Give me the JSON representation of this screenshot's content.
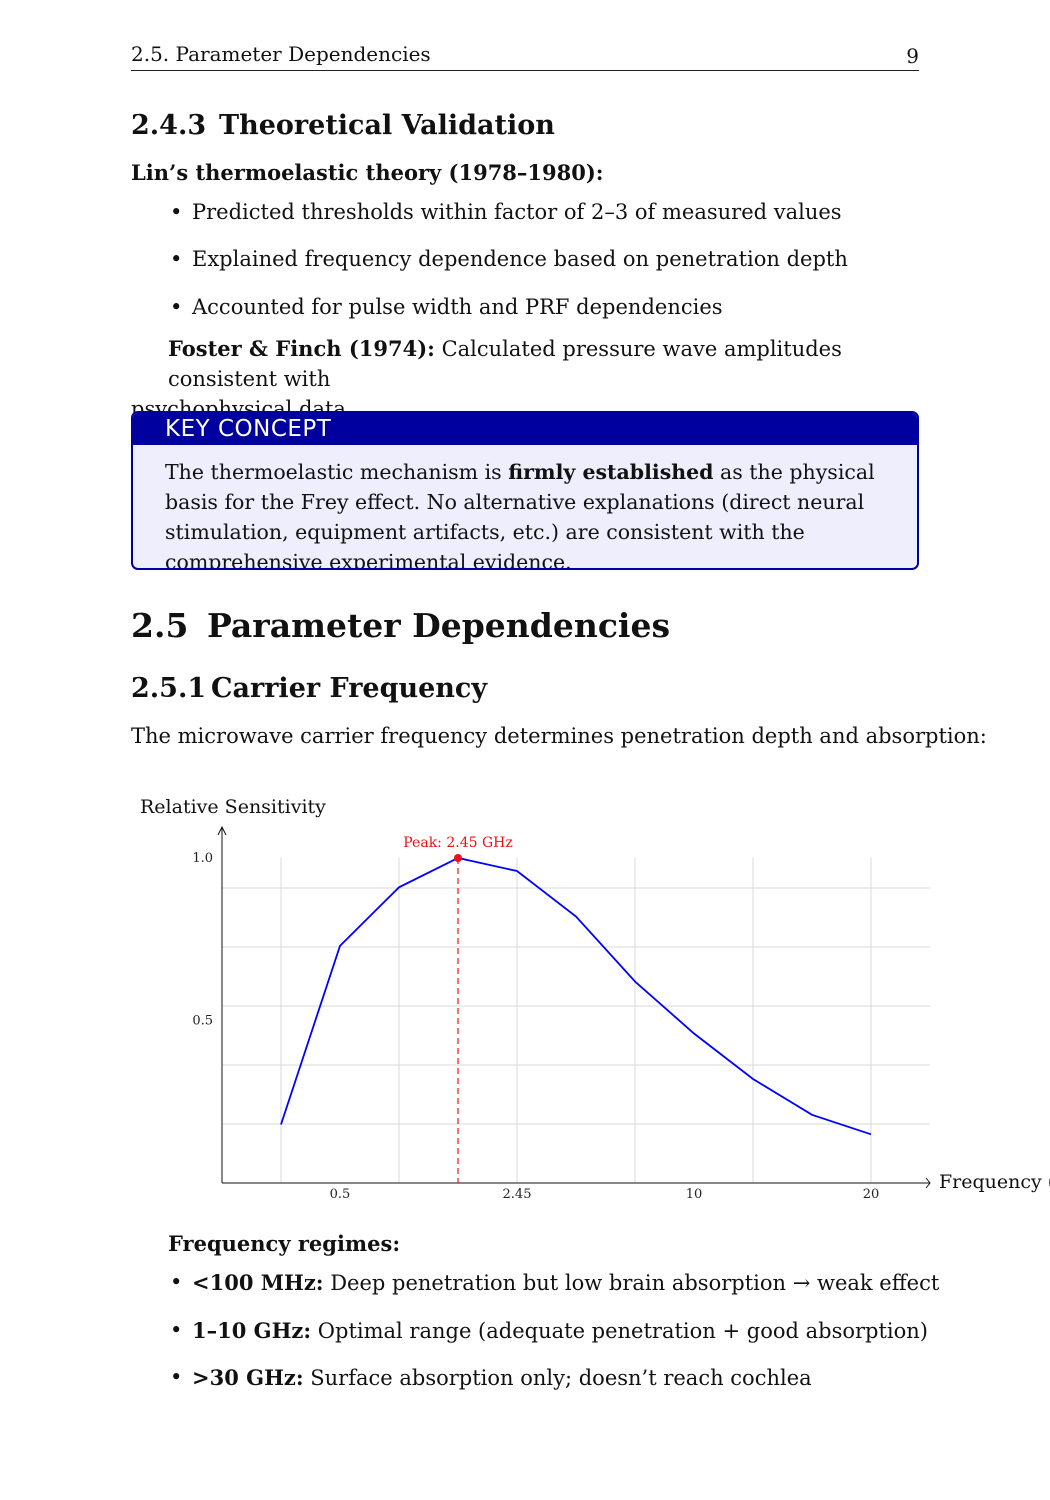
{
  "header": {
    "section": "2.5.  Parameter Dependencies",
    "page_number": "9"
  },
  "sec_243": {
    "number": "2.4.3",
    "title": "Theoretical Validation",
    "lin_heading": "Lin’s thermoelastic theory (1978–1980):",
    "bullets": [
      "Predicted thresholds within factor of 2–3 of measured values",
      "Explained frequency dependence based on penetration depth",
      "Accounted for pulse width and PRF dependencies"
    ],
    "foster_bold": "Foster & Finch (1974):",
    "foster_text": " Calculated pressure wave amplitudes consistent with",
    "foster_text_2": "psychophysical data."
  },
  "key_concept": {
    "title": "KEY CONCEPT",
    "text_before": "The thermoelastic mechanism is ",
    "text_bold": "firmly established",
    "text_after": " as the physical basis for the Frey effect. No alternative explanations (direct neural stimulation, equipment artifacts, etc.) are consistent with the comprehensive experimental evidence."
  },
  "sec_25": {
    "number": "2.5",
    "title": "Parameter Dependencies"
  },
  "sec_251": {
    "number": "2.5.1",
    "title": "Carrier Frequency",
    "intro": "The microwave carrier frequency determines penetration depth and absorption:"
  },
  "chart_data": {
    "type": "line",
    "ylabel": "Relative Sensitivity",
    "xlabel": "Frequency (G",
    "x_ticks": [
      "0.5",
      "2.45",
      "10",
      "20"
    ],
    "y_ticks": [
      "1.0",
      "0.5"
    ],
    "x_index": [
      1,
      2,
      3,
      4,
      5,
      6,
      7,
      8,
      9,
      10,
      11
    ],
    "values": [
      0.18,
      0.73,
      0.91,
      1.0,
      0.96,
      0.82,
      0.62,
      0.46,
      0.32,
      0.21,
      0.15
    ],
    "peak": {
      "label": "Peak: 2.45 GHz",
      "x_index": 4,
      "value": 1.0
    },
    "ylim": [
      0,
      1.1
    ],
    "grid": true,
    "line_color": "#0000ff",
    "peak_color": "#ee1111"
  },
  "regimes": {
    "heading": "Frequency regimes:",
    "items": [
      {
        "bold": "<100 MHz:",
        "text": " Deep penetration but low brain absorption → weak effect"
      },
      {
        "bold": "1–10 GHz:",
        "text": " Optimal range (adequate penetration + good absorption)"
      },
      {
        "bold": ">30 GHz:",
        "text": " Surface absorption only; doesn’t reach cochlea"
      }
    ]
  }
}
